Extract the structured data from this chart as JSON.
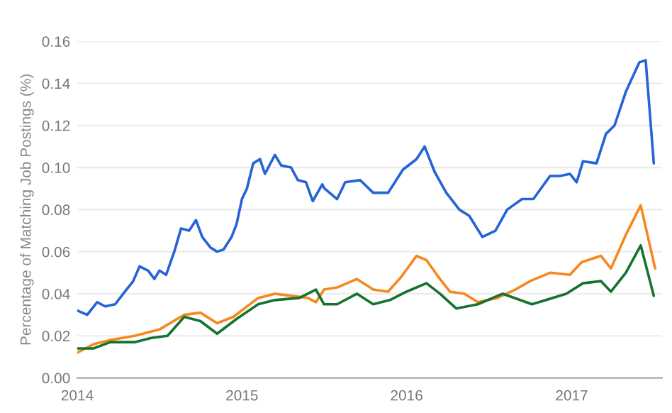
{
  "chart_data": {
    "type": "line",
    "ylabel": "Percentage of Matching Job Postings (%)",
    "grid": "y",
    "marker": "none",
    "line_style": "solid",
    "xlim": [
      "2014-01-01",
      "2017-07-20"
    ],
    "xticks": [
      {
        "value": "2014-01-01",
        "label": "2014"
      },
      {
        "value": "2015-01-01",
        "label": "2015"
      },
      {
        "value": "2016-01-01",
        "label": "2016"
      },
      {
        "value": "2017-01-01",
        "label": "2017"
      }
    ],
    "ylim": [
      0,
      0.16
    ],
    "yticks": [
      {
        "value": 0,
        "label": "0.00"
      },
      {
        "value": 0.02,
        "label": "0.02"
      },
      {
        "value": 0.04,
        "label": "0.04"
      },
      {
        "value": 0.06,
        "label": "0.06"
      },
      {
        "value": 0.08,
        "label": "0.08"
      },
      {
        "value": 0.1,
        "label": "0.10"
      },
      {
        "value": 0.12,
        "label": "0.12"
      },
      {
        "value": 0.14,
        "label": "0.14"
      },
      {
        "value": 0.16,
        "label": "0.16"
      }
    ],
    "series": [
      {
        "color": "#2563d6",
        "x": [
          "2014-01-01",
          "2014-01-23",
          "2014-02-14",
          "2014-03-04",
          "2014-03-26",
          "2014-04-13",
          "2014-05-05",
          "2014-05-19",
          "2014-06-07",
          "2014-06-21",
          "2014-07-02",
          "2014-07-17",
          "2014-08-04",
          "2014-08-19",
          "2014-09-06",
          "2014-09-21",
          "2014-10-05",
          "2014-10-23",
          "2014-11-07",
          "2014-11-21",
          "2014-12-09",
          "2014-12-20",
          "2015-01-01",
          "2015-01-12",
          "2015-01-26",
          "2015-02-10",
          "2015-02-21",
          "2015-03-15",
          "2015-03-29",
          "2015-04-20",
          "2015-05-05",
          "2015-05-23",
          "2015-06-07",
          "2015-06-28",
          "2015-07-03",
          "2015-07-31",
          "2015-08-18",
          "2015-09-20",
          "2015-10-19",
          "2015-11-21",
          "2015-12-24",
          "2016-01-23",
          "2016-02-10",
          "2016-03-03",
          "2016-03-29",
          "2016-04-27",
          "2016-05-19",
          "2016-06-17",
          "2016-07-16",
          "2016-08-11",
          "2016-09-13",
          "2016-10-08",
          "2016-11-14",
          "2016-12-06",
          "2016-12-28",
          "2017-01-12",
          "2017-01-26",
          "2017-02-25",
          "2017-03-18",
          "2017-04-06",
          "2017-05-01",
          "2017-05-31",
          "2017-06-14",
          "2017-07-02"
        ],
        "values": [
          0.032,
          0.03,
          0.036,
          0.034,
          0.035,
          0.04,
          0.046,
          0.053,
          0.051,
          0.047,
          0.051,
          0.049,
          0.06,
          0.071,
          0.07,
          0.075,
          0.067,
          0.062,
          0.06,
          0.061,
          0.067,
          0.073,
          0.085,
          0.09,
          0.102,
          0.104,
          0.097,
          0.106,
          0.101,
          0.1,
          0.094,
          0.093,
          0.084,
          0.092,
          0.09,
          0.085,
          0.093,
          0.094,
          0.088,
          0.088,
          0.099,
          0.104,
          0.11,
          0.098,
          0.088,
          0.08,
          0.077,
          0.067,
          0.07,
          0.08,
          0.085,
          0.085,
          0.096,
          0.096,
          0.097,
          0.093,
          0.103,
          0.102,
          0.116,
          0.12,
          0.136,
          0.15,
          0.151,
          0.102
        ]
      },
      {
        "color": "#f5881e",
        "x": [
          "2014-01-01",
          "2014-02-06",
          "2014-03-15",
          "2014-05-08",
          "2014-07-02",
          "2014-08-26",
          "2014-10-01",
          "2014-11-07",
          "2014-12-13",
          "2015-02-06",
          "2015-03-15",
          "2015-04-20",
          "2015-05-27",
          "2015-06-14",
          "2015-07-02",
          "2015-07-31",
          "2015-09-13",
          "2015-10-19",
          "2015-11-21",
          "2015-12-20",
          "2016-01-23",
          "2016-02-14",
          "2016-03-15",
          "2016-04-06",
          "2016-05-08",
          "2016-06-07",
          "2016-07-20",
          "2016-08-29",
          "2016-10-01",
          "2016-11-14",
          "2016-12-28",
          "2017-01-23",
          "2017-03-07",
          "2017-03-29",
          "2017-05-01",
          "2017-06-03",
          "2017-07-05"
        ],
        "values": [
          0.012,
          0.016,
          0.018,
          0.02,
          0.023,
          0.03,
          0.031,
          0.026,
          0.029,
          0.038,
          0.04,
          0.039,
          0.038,
          0.036,
          0.042,
          0.043,
          0.047,
          0.042,
          0.041,
          0.048,
          0.058,
          0.056,
          0.047,
          0.041,
          0.04,
          0.036,
          0.038,
          0.042,
          0.046,
          0.05,
          0.049,
          0.055,
          0.058,
          0.052,
          0.068,
          0.082,
          0.052
        ]
      },
      {
        "color": "#16722f",
        "x": [
          "2014-01-01",
          "2014-02-06",
          "2014-03-15",
          "2014-05-08",
          "2014-06-14",
          "2014-07-20",
          "2014-08-26",
          "2014-10-01",
          "2014-11-07",
          "2014-12-20",
          "2015-02-06",
          "2015-03-15",
          "2015-05-08",
          "2015-06-14",
          "2015-07-02",
          "2015-07-31",
          "2015-09-13",
          "2015-10-19",
          "2015-11-25",
          "2016-01-01",
          "2016-02-14",
          "2016-03-15",
          "2016-04-20",
          "2016-06-07",
          "2016-08-01",
          "2016-10-05",
          "2016-12-20",
          "2017-01-26",
          "2017-03-07",
          "2017-03-29",
          "2017-05-01",
          "2017-06-03",
          "2017-07-02"
        ],
        "values": [
          0.014,
          0.014,
          0.017,
          0.017,
          0.019,
          0.02,
          0.029,
          0.027,
          0.021,
          0.028,
          0.035,
          0.037,
          0.038,
          0.042,
          0.035,
          0.035,
          0.04,
          0.035,
          0.037,
          0.041,
          0.045,
          0.04,
          0.033,
          0.035,
          0.04,
          0.035,
          0.04,
          0.045,
          0.046,
          0.041,
          0.05,
          0.063,
          0.039
        ]
      }
    ]
  }
}
